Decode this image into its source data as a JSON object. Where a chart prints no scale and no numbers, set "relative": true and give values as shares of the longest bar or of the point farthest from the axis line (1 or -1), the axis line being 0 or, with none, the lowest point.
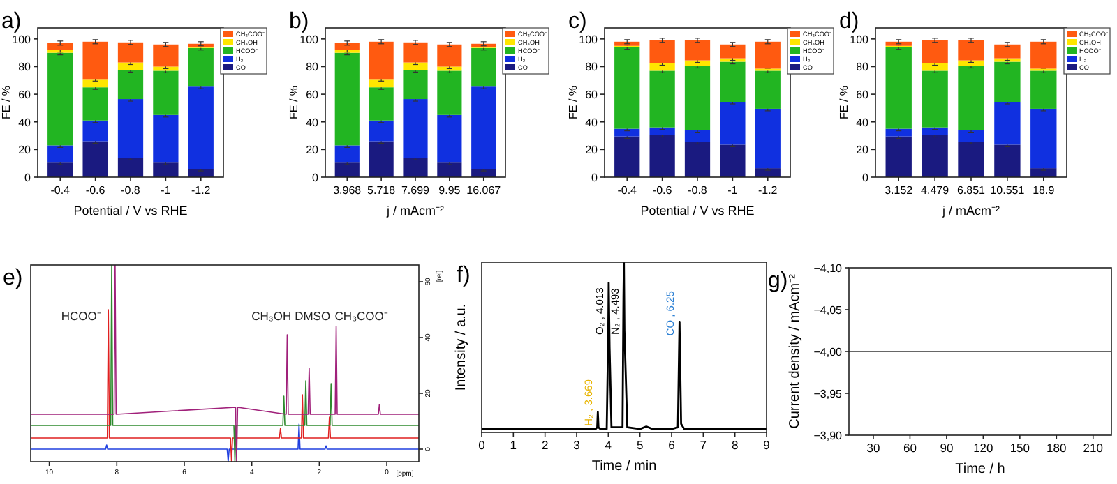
{
  "chart_data": [
    {
      "type": "bar",
      "title": "a)",
      "xlabel": "Potential / V vs RHE",
      "ylabel": "FE / %",
      "categories": [
        "-0.4",
        "-0.6",
        "-0.8",
        "-1",
        "-1.2"
      ],
      "stacked": true,
      "ylim": [
        0,
        108
      ],
      "yticks": [
        0,
        20,
        40,
        60,
        80,
        100
      ],
      "legend": "top right",
      "series": [
        {
          "name": "CO",
          "color": "#1a1a80",
          "values": [
            10.5,
            26,
            14,
            10.5,
            6
          ],
          "errors": [
            1.5,
            1.5,
            1.5,
            1.5,
            1.5
          ]
        },
        {
          "name": "H₂",
          "color": "#1030e0",
          "values": [
            12.5,
            15,
            42.5,
            34.5,
            59.5
          ],
          "errors": [
            1.5,
            1.5,
            1.5,
            1.5,
            1.5
          ]
        },
        {
          "name": "HCOO⁻",
          "color": "#22b522",
          "values": [
            67,
            24,
            21,
            32,
            28
          ],
          "errors": [
            1.5,
            1.5,
            1.5,
            1.5,
            1.5
          ]
        },
        {
          "name": "CH₃OH",
          "color": "#ffe600",
          "values": [
            2,
            6,
            5.5,
            3,
            0.5
          ],
          "errors": [
            1.5,
            1.5,
            1.5,
            1.5,
            null
          ]
        },
        {
          "name": "CH₃COO⁻",
          "color": "#ff5a10",
          "values": [
            5,
            27,
            14.5,
            16,
            2.5
          ],
          "errors": [
            1.5,
            1.5,
            1.5,
            1.5,
            1.5
          ]
        }
      ]
    },
    {
      "type": "bar",
      "title": "b)",
      "xlabel": "j / mAcm⁻²",
      "ylabel": "FE / %",
      "categories": [
        "3.968",
        "5.718",
        "7.699",
        "9.95",
        "16.067"
      ],
      "stacked": true,
      "ylim": [
        0,
        108
      ],
      "yticks": [
        0,
        20,
        40,
        60,
        80,
        100
      ],
      "legend": "top right",
      "series": [
        {
          "name": "CO",
          "color": "#1a1a80",
          "values": [
            10.5,
            26,
            14,
            10.5,
            6
          ],
          "errors": [
            1.5,
            1.5,
            1.5,
            1.5,
            1.5
          ]
        },
        {
          "name": "H₂",
          "color": "#1030e0",
          "values": [
            12.5,
            15,
            42.5,
            34.5,
            59.5
          ],
          "errors": [
            1.5,
            1.5,
            1.5,
            1.5,
            1.5
          ]
        },
        {
          "name": "HCOO⁻",
          "color": "#22b522",
          "values": [
            67,
            24,
            21,
            32,
            28
          ],
          "errors": [
            1.5,
            1.5,
            1.5,
            1.5,
            1.5
          ]
        },
        {
          "name": "CH₃OH",
          "color": "#ffe600",
          "values": [
            2,
            6,
            5.5,
            3,
            0.5
          ],
          "errors": [
            1.5,
            1.5,
            1.5,
            1.5,
            null
          ]
        },
        {
          "name": "CH₃COO⁻",
          "color": "#ff5a10",
          "values": [
            5,
            27,
            14.5,
            16,
            2.5
          ],
          "errors": [
            1.5,
            1.5,
            1.5,
            1.5,
            1.5
          ]
        }
      ]
    },
    {
      "type": "bar",
      "title": "c)",
      "xlabel": "Potential / V vs RHE",
      "ylabel": "FE / %",
      "categories": [
        "-0.4",
        "-0.6",
        "-0.8",
        "-1",
        "-1.2"
      ],
      "stacked": true,
      "ylim": [
        0,
        108
      ],
      "yticks": [
        0,
        20,
        40,
        60,
        80,
        100
      ],
      "legend": "top right",
      "series": [
        {
          "name": "CO",
          "color": "#1a1a80",
          "values": [
            29.5,
            30.5,
            25.5,
            23.5,
            6.5
          ],
          "errors": [
            1.5,
            1.5,
            1.5,
            1.5,
            1.5
          ]
        },
        {
          "name": "H₂",
          "color": "#1030e0",
          "values": [
            5.5,
            5.5,
            8.5,
            31,
            43
          ],
          "errors": [
            1.5,
            1.5,
            1.5,
            1.5,
            1.5
          ]
        },
        {
          "name": "HCOO⁻",
          "color": "#22b522",
          "values": [
            59,
            41,
            46.5,
            29,
            27.5
          ],
          "errors": [
            1.5,
            1.5,
            1.5,
            1.5,
            1.5
          ]
        },
        {
          "name": "CH₃OH",
          "color": "#ffe600",
          "values": [
            1,
            5.5,
            4,
            2.5,
            1.5
          ],
          "errors": [
            null,
            1.5,
            1.5,
            1.5,
            null
          ]
        },
        {
          "name": "CH₃COO⁻",
          "color": "#ff5a10",
          "values": [
            3,
            16.5,
            14.5,
            10,
            19.5
          ],
          "errors": [
            1.5,
            1.5,
            1.5,
            1.5,
            1.5
          ]
        }
      ]
    },
    {
      "type": "bar",
      "title": "d)",
      "xlabel": "j / mAcm⁻²",
      "ylabel": "FE / %",
      "categories": [
        "3.152",
        "4.479",
        "6.851",
        "10.551",
        "18.9"
      ],
      "stacked": true,
      "ylim": [
        0,
        108
      ],
      "yticks": [
        0,
        20,
        40,
        60,
        80,
        100
      ],
      "legend": "top right",
      "series": [
        {
          "name": "CO",
          "color": "#1a1a80",
          "values": [
            29.5,
            30.5,
            25.5,
            23.5,
            6.5
          ],
          "errors": [
            1.5,
            1.5,
            1.5,
            1.5,
            1.5
          ]
        },
        {
          "name": "H₂",
          "color": "#1030e0",
          "values": [
            5.5,
            5.5,
            8.5,
            31,
            43
          ],
          "errors": [
            1.5,
            1.5,
            1.5,
            1.5,
            1.5
          ]
        },
        {
          "name": "HCOO⁻",
          "color": "#22b522",
          "values": [
            59,
            41,
            46.5,
            29,
            27.5
          ],
          "errors": [
            1.5,
            1.5,
            1.5,
            1.5,
            1.5
          ]
        },
        {
          "name": "CH₃OH",
          "color": "#ffe600",
          "values": [
            1,
            5.5,
            4,
            2.5,
            1.5
          ],
          "errors": [
            null,
            1.5,
            1.5,
            1.5,
            null
          ]
        },
        {
          "name": "CH₃COO⁻",
          "color": "#ff5a10",
          "values": [
            3,
            16.5,
            14.5,
            10,
            19.5
          ],
          "errors": [
            1.5,
            1.5,
            1.5,
            1.5,
            1.5
          ]
        }
      ]
    },
    {
      "type": "line",
      "title": "e)",
      "xlabel": "[ppm]",
      "ylabel": "[rel]",
      "xlim": [
        10.55,
        -0.95
      ],
      "xticks": [
        10,
        8,
        6,
        4,
        2,
        0
      ],
      "ylim": [
        -4.5,
        66
      ],
      "yticks": [
        0,
        20,
        40,
        60
      ],
      "annotations": [
        "HCOO⁻",
        "CH₃OH",
        "DMSO",
        "CH₃COO⁻"
      ],
      "series": [
        {
          "color": "#2040e0",
          "x": [
            10.55,
            8.33,
            8.3,
            8.27,
            4.73,
            4.7,
            4.67,
            2.63,
            2.6,
            2.57,
            1.83,
            1.8,
            1.77,
            -0.95
          ],
          "values": [
            0,
            0,
            1.5,
            0,
            0,
            -4.5,
            0,
            0,
            9,
            0,
            0,
            1.2,
            0,
            0
          ]
        },
        {
          "color": "#e02020",
          "x": [
            10.55,
            8.28,
            8.25,
            8.22,
            4.63,
            4.6,
            4.57,
            3.18,
            3.15,
            3.12,
            2.53,
            2.5,
            2.47,
            1.73,
            1.7,
            1.67,
            -0.95
          ],
          "values": [
            4,
            4,
            50,
            4,
            4,
            -4.5,
            4,
            4,
            7.5,
            4,
            4,
            19.5,
            4,
            4,
            11.5,
            4,
            4
          ]
        },
        {
          "color": "#2e8b2e",
          "x": [
            10.55,
            8.18,
            8.15,
            8.12,
            4.53,
            4.5,
            4.47,
            3.08,
            3.05,
            3.02,
            2.43,
            2.4,
            2.37,
            1.68,
            1.65,
            1.62,
            -0.95
          ],
          "values": [
            8.5,
            8.5,
            66,
            8.5,
            8.5,
            -4.5,
            8.5,
            8.5,
            19,
            8.5,
            8.5,
            24.5,
            8.5,
            8.5,
            23.5,
            8.5,
            8.5
          ]
        },
        {
          "color": "#a0207a",
          "x": [
            10.55,
            8.08,
            8.05,
            8.02,
            4.48,
            4.45,
            4.42,
            2.98,
            2.95,
            2.92,
            2.33,
            2.3,
            2.27,
            1.53,
            1.5,
            1.47,
            0.25,
            0.22,
            0.19,
            -0.95
          ],
          "values": [
            12.5,
            12.5,
            66,
            12.5,
            15,
            -4.5,
            15,
            12.5,
            41,
            12.5,
            12.5,
            29,
            12.5,
            12.5,
            44,
            12.5,
            12.5,
            16,
            12.5,
            12.5
          ]
        }
      ]
    },
    {
      "type": "line",
      "title": "f)",
      "xlabel": "Time / min",
      "ylabel": "Intensity / a.u.",
      "relative": true,
      "xlim": [
        0,
        9
      ],
      "xticks": [
        0,
        1,
        2,
        3,
        4,
        5,
        6,
        7,
        8,
        9
      ],
      "annotations": [
        {
          "text": "H₂ , 3.669",
          "x": 3.669,
          "y": 0.12
        },
        {
          "text": "O₂ , 4.013",
          "x": 4.013,
          "y": 0.88
        },
        {
          "text": "N₂ , 4.493",
          "x": 4.493,
          "y": 1
        },
        {
          "text": "CO , 6.25",
          "x": 6.25,
          "y": 0.65
        }
      ],
      "series": [
        {
          "color": "#000000",
          "x": [
            0,
            3.6,
            3.65,
            3.669,
            3.69,
            3.75,
            3.95,
            4.0,
            4.013,
            4.04,
            4.1,
            4.45,
            4.48,
            4.493,
            4.51,
            4.6,
            5.0,
            5.2,
            5.4,
            6.0,
            6.2,
            6.25,
            6.3,
            6.4,
            9
          ],
          "values": [
            0.02,
            0.02,
            0.03,
            0.12,
            0.03,
            0.02,
            0.02,
            0.6,
            0.88,
            0.5,
            0.03,
            0.03,
            0.8,
            1,
            0.6,
            0.03,
            0.02,
            0.035,
            0.02,
            0.02,
            0.03,
            0.65,
            0.05,
            0.02,
            0.02
          ]
        }
      ]
    },
    {
      "type": "line",
      "title": "g)",
      "xlabel": "Time / h",
      "ylabel": "Current density / mAcm⁻²",
      "xlim": [
        10,
        225
      ],
      "xticks": [
        30,
        60,
        90,
        120,
        150,
        180,
        210
      ],
      "ylim": [
        -3.9,
        -4.1
      ],
      "yticks": [
        {
          "value": -4.1,
          "label": "−4,10"
        },
        {
          "value": -4.05,
          "label": "−4,05"
        },
        {
          "value": -4.0,
          "label": "−4,00"
        },
        {
          "value": -3.95,
          "label": "−3,95"
        },
        {
          "value": -3.9,
          "label": "−3,90"
        }
      ],
      "series": [
        {
          "color": "#333333",
          "x": [
            10,
            60,
            100,
            225
          ],
          "values": [
            -4.0,
            -4.0,
            -4.0,
            -4.0
          ]
        }
      ]
    }
  ]
}
